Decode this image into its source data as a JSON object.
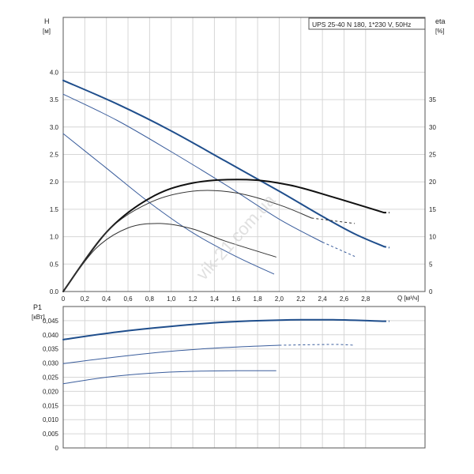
{
  "chart_data": [
    {
      "type": "line",
      "title": "UPS 25-40 N 180, 1*230 V, 50Hz",
      "left_axis": {
        "label": "H",
        "unit": "[м]",
        "ticks": [
          "0.0",
          "0.5",
          "1.0",
          "1.5",
          "2.0",
          "2.5",
          "3.0",
          "3.5",
          "4.0"
        ],
        "range": [
          0,
          5.0
        ]
      },
      "right_axis": {
        "label": "eta",
        "unit": "[%]",
        "ticks": [
          "0",
          "5",
          "10",
          "15",
          "20",
          "25",
          "30",
          "35"
        ],
        "range": [
          0,
          50
        ]
      },
      "x_axis": {
        "label": "Q [м³/ч]",
        "ticks": [
          "0",
          "0,2",
          "0,4",
          "0,6",
          "0,8",
          "1,0",
          "1,2",
          "1,4",
          "1,6",
          "1,8",
          "2,0",
          "2,2",
          "2,4",
          "2,6",
          "2,8"
        ],
        "range": [
          0,
          3.35
        ]
      },
      "grid": true,
      "series": [
        {
          "color": "#1f4e8c",
          "width": 2,
          "axis": "left",
          "x": [
            0,
            0.5,
            1.0,
            1.5,
            2.0,
            2.4,
            2.7,
            2.97
          ],
          "y": [
            3.85,
            3.42,
            2.93,
            2.38,
            1.83,
            1.37,
            1.05,
            0.82
          ],
          "dashed_to": [
            3.02,
            0.8
          ]
        },
        {
          "color": "#3a5d9c",
          "width": 1,
          "axis": "left",
          "x": [
            0,
            0.5,
            1.0,
            1.5,
            2.0,
            2.4,
            2.7
          ],
          "y": [
            3.6,
            3.12,
            2.55,
            1.95,
            1.32,
            0.9,
            0.64
          ],
          "dashed_from": 2.5
        },
        {
          "color": "#3a5d9c",
          "width": 1,
          "axis": "left",
          "x": [
            0,
            0.4,
            0.8,
            1.2,
            1.6,
            1.95
          ],
          "y": [
            2.88,
            2.25,
            1.62,
            1.07,
            0.64,
            0.32
          ]
        },
        {
          "color": "#111111",
          "width": 2,
          "axis": "right",
          "x": [
            0,
            0.4,
            0.8,
            1.2,
            1.7,
            2.1,
            2.5,
            2.97
          ],
          "y": [
            0,
            10.8,
            17.0,
            19.8,
            20.4,
            19.4,
            17.2,
            14.4
          ],
          "dashed_to": [
            3.02,
            14.4
          ]
        },
        {
          "color": "#333333",
          "width": 1,
          "axis": "right",
          "x": [
            0,
            0.4,
            0.8,
            1.2,
            1.6,
            2.0,
            2.3,
            2.7
          ],
          "y": [
            0,
            10.8,
            16.2,
            18.3,
            18.0,
            15.8,
            13.4,
            12.4
          ],
          "dashed_from": 2.45
        },
        {
          "color": "#333333",
          "width": 1,
          "axis": "right",
          "x": [
            0,
            0.3,
            0.6,
            0.9,
            1.2,
            1.5,
            1.97
          ],
          "y": [
            0,
            7.8,
            11.6,
            12.4,
            11.4,
            9.2,
            6.3
          ]
        }
      ]
    },
    {
      "type": "line",
      "left_axis": {
        "label": "P1",
        "unit": "[кВт]",
        "ticks": [
          "0",
          "0,005",
          "0,010",
          "0,015",
          "0,020",
          "0,025",
          "0,030",
          "0,035",
          "0,040",
          "0,045"
        ],
        "range": [
          0,
          0.05
        ]
      },
      "x_axis": {
        "range": [
          0,
          3.35
        ]
      },
      "grid": true,
      "series": [
        {
          "color": "#1f4e8c",
          "width": 2,
          "x": [
            0,
            0.5,
            1.0,
            1.5,
            2.0,
            2.5,
            2.97
          ],
          "y": [
            0.0383,
            0.041,
            0.043,
            0.0445,
            0.0452,
            0.0453,
            0.0448
          ],
          "dashed_to": [
            3.02,
            0.0448
          ]
        },
        {
          "color": "#3a5d9c",
          "width": 1,
          "x": [
            0,
            0.5,
            1.0,
            1.5,
            2.0,
            2.5,
            2.7
          ],
          "y": [
            0.0298,
            0.0322,
            0.0342,
            0.0355,
            0.0363,
            0.0366,
            0.0363
          ],
          "dashed_from": 2.45
        },
        {
          "color": "#3a5d9c",
          "width": 1,
          "x": [
            0,
            0.4,
            0.8,
            1.2,
            1.6,
            1.97
          ],
          "y": [
            0.0227,
            0.025,
            0.0264,
            0.0271,
            0.0273,
            0.0273
          ]
        }
      ]
    }
  ],
  "watermark": "vik-21.com.ua"
}
